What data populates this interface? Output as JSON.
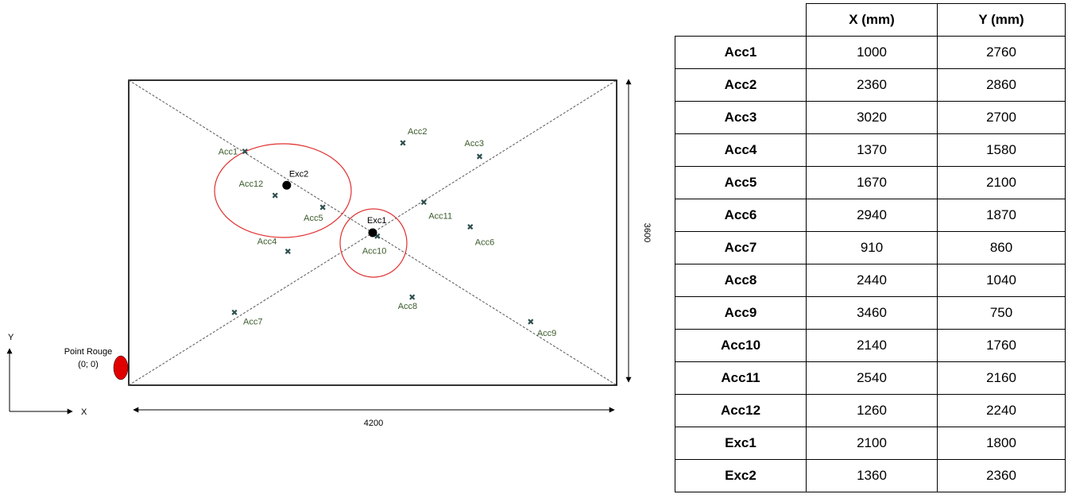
{
  "diagram": {
    "room_width_mm": 4200,
    "room_height_mm": 3600,
    "width_label": "4200",
    "height_label": "3600",
    "axes": {
      "x_label": "X",
      "y_label": "Y"
    },
    "origin": {
      "name": "Point Rouge",
      "coords": "(0; 0)",
      "color": "#e00000"
    },
    "marker_color": "#2f4f4f",
    "label_color": "#3a5a2a",
    "circle_color": "#e03030",
    "sensors": [
      {
        "name": "Acc1",
        "label": "Acc1"
      },
      {
        "name": "Acc2",
        "label": "Acc2"
      },
      {
        "name": "Acc3",
        "label": "Acc3"
      },
      {
        "name": "Acc4",
        "label": "Acc4"
      },
      {
        "name": "Acc5",
        "label": "Acc5"
      },
      {
        "name": "Acc6",
        "label": "Acc6"
      },
      {
        "name": "Acc7",
        "label": "Acc7"
      },
      {
        "name": "Acc8",
        "label": "Acc8"
      },
      {
        "name": "Acc9",
        "label": "Acc9"
      },
      {
        "name": "Acc10",
        "label": "Acc10"
      },
      {
        "name": "Acc11",
        "label": "Acc11"
      },
      {
        "name": "Acc12",
        "label": "Acc12"
      }
    ],
    "exciters": [
      {
        "name": "Exc1",
        "label": "Exc1"
      },
      {
        "name": "Exc2",
        "label": "Exc2"
      }
    ]
  },
  "table": {
    "headers": [
      "",
      "X (mm)",
      "Y (mm)"
    ],
    "rows": [
      {
        "name": "Acc1",
        "x": "1000",
        "y": "2760"
      },
      {
        "name": "Acc2",
        "x": "2360",
        "y": "2860"
      },
      {
        "name": "Acc3",
        "x": "3020",
        "y": "2700"
      },
      {
        "name": "Acc4",
        "x": "1370",
        "y": "1580"
      },
      {
        "name": "Acc5",
        "x": "1670",
        "y": "2100"
      },
      {
        "name": "Acc6",
        "x": "2940",
        "y": "1870"
      },
      {
        "name": "Acc7",
        "x": "910",
        "y": "860"
      },
      {
        "name": "Acc8",
        "x": "2440",
        "y": "1040"
      },
      {
        "name": "Acc9",
        "x": "3460",
        "y": "750"
      },
      {
        "name": "Acc10",
        "x": "2140",
        "y": "1760"
      },
      {
        "name": "Acc11",
        "x": "2540",
        "y": "2160"
      },
      {
        "name": "Acc12",
        "x": "1260",
        "y": "2240"
      },
      {
        "name": "Exc1",
        "x": "2100",
        "y": "1800"
      },
      {
        "name": "Exc2",
        "x": "1360",
        "y": "2360"
      }
    ]
  }
}
